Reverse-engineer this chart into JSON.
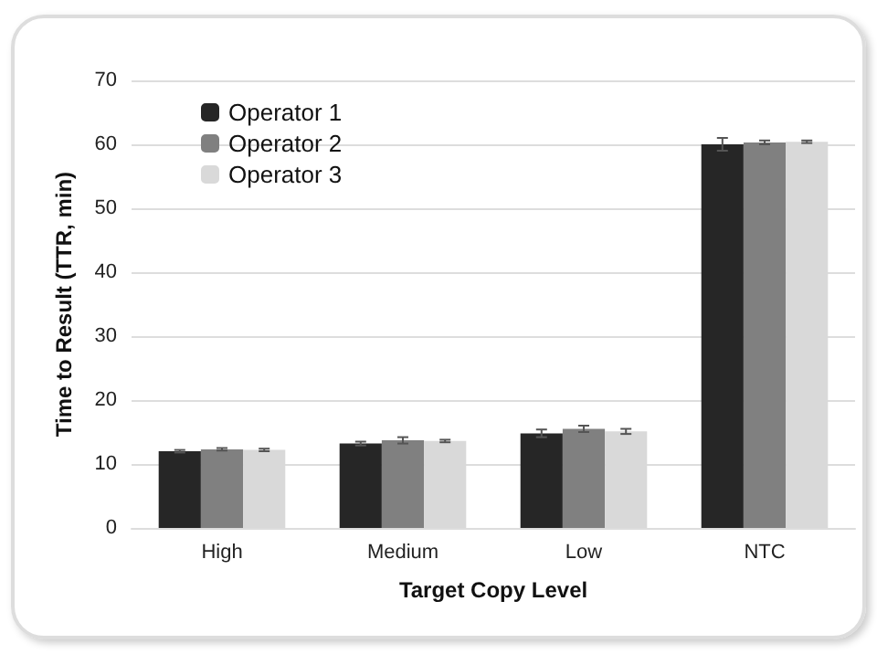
{
  "chart_data": {
    "type": "bar",
    "xlabel": "Target Copy Level",
    "ylabel": "Time to Result (TTR, min)",
    "categories": [
      "High",
      "Medium",
      "Low",
      "NTC"
    ],
    "series": [
      {
        "name": "Operator 1",
        "color": "#262626",
        "values": [
          12.0,
          13.2,
          14.8,
          60.0
        ],
        "errors": [
          0.2,
          0.3,
          0.6,
          1.0
        ]
      },
      {
        "name": "Operator 2",
        "color": "#808080",
        "values": [
          12.3,
          13.7,
          15.5,
          60.3
        ],
        "errors": [
          0.2,
          0.5,
          0.5,
          0.3
        ]
      },
      {
        "name": "Operator 3",
        "color": "#d9d9d9",
        "values": [
          12.2,
          13.6,
          15.1,
          60.4
        ],
        "errors": [
          0.2,
          0.2,
          0.4,
          0.2
        ]
      }
    ],
    "ylim": [
      0,
      70
    ],
    "yticks": [
      0,
      10,
      20,
      30,
      40,
      50,
      60,
      70
    ],
    "grid": "y",
    "legend": "top left"
  }
}
